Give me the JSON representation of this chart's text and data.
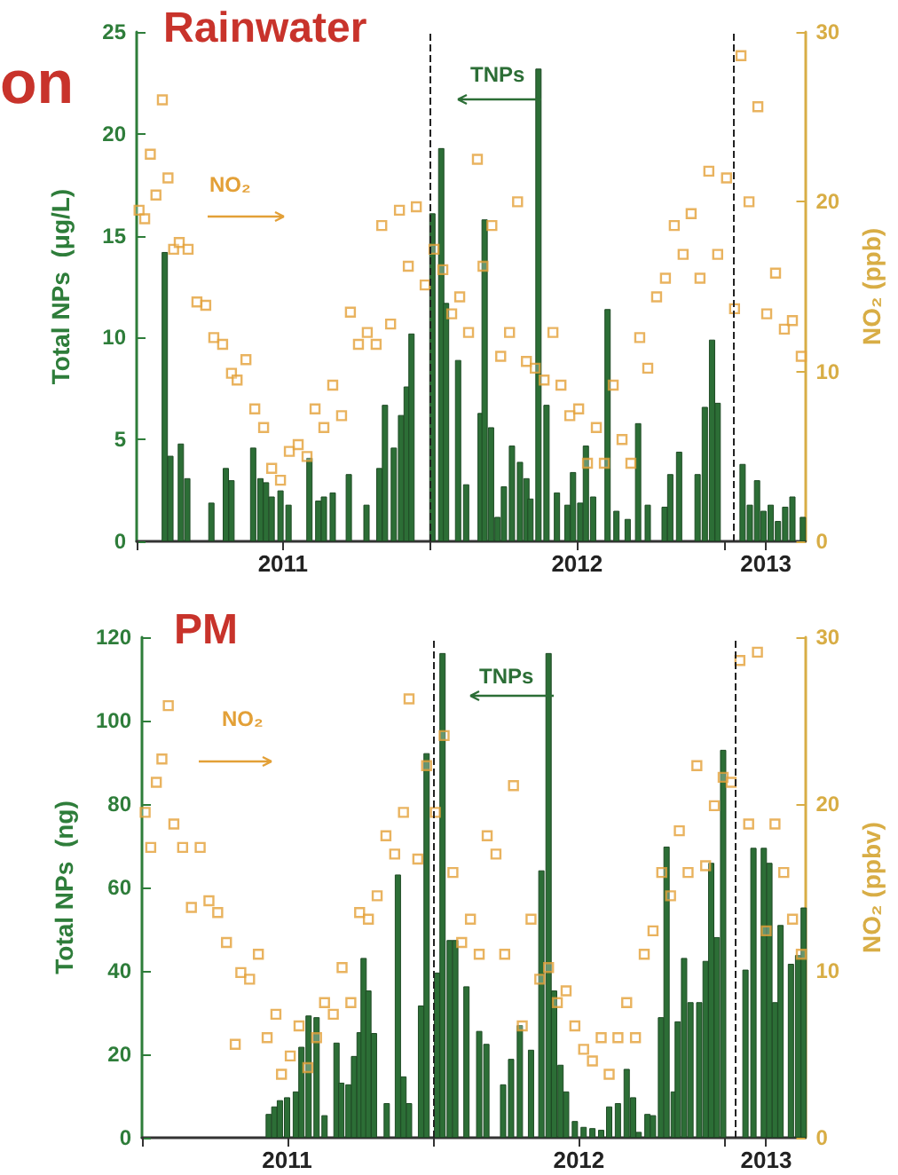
{
  "chart_data": [
    {
      "type": "bar",
      "title": "Rainwater",
      "ylabel": "Total NPs  (μg/L)",
      "y2label": "NO₂ (ppb)",
      "annotations": [
        "on"
      ],
      "xlim": [
        "2011-01-01",
        "2013-04-12"
      ],
      "xticks": [
        {
          "value": "2011-01-01",
          "label": null
        },
        {
          "value": "2011-07-02",
          "label": "2011"
        },
        {
          "value": "2012-01-01",
          "label": null
        },
        {
          "value": "2012-07-02",
          "label": "2012"
        },
        {
          "value": "2013-01-01",
          "label": null
        },
        {
          "value": "2013-02-22",
          "label": "2013"
        }
      ],
      "ylim": [
        0,
        25
      ],
      "yticks": [
        0,
        5,
        10,
        15,
        20,
        25
      ],
      "y2lim": [
        0,
        30
      ],
      "y2ticks": [
        0,
        10,
        20,
        30
      ],
      "grid": false,
      "legend": false,
      "marker": "square",
      "ref_lines": [
        {
          "axis": "x",
          "value": "2012-01-01",
          "label": null,
          "color": "#222222",
          "line_style": "dashed"
        },
        {
          "axis": "x",
          "value": "2013-01-13",
          "label": null,
          "color": "#222222",
          "line_style": "dashed"
        }
      ],
      "series": [
        {
          "name": "TNPs",
          "color": "#2c6e36",
          "x": [
            "2011-02-05",
            "2011-02-12",
            "2011-02-25",
            "2011-03-05",
            "2011-04-04",
            "2011-04-22",
            "2011-04-29",
            "2011-05-26",
            "2011-06-04",
            "2011-06-11",
            "2011-06-18",
            "2011-06-29",
            "2011-07-09",
            "2011-08-04",
            "2011-08-15",
            "2011-08-22",
            "2011-09-02",
            "2011-09-22",
            "2011-10-14",
            "2011-10-30",
            "2011-11-06",
            "2011-11-17",
            "2011-11-26",
            "2011-12-03",
            "2011-12-09",
            "2012-01-04",
            "2012-01-15",
            "2012-01-21",
            "2012-02-05",
            "2012-02-15",
            "2012-03-04",
            "2012-03-09",
            "2012-03-17",
            "2012-03-25",
            "2012-04-02",
            "2012-04-12",
            "2012-04-22",
            "2012-04-30",
            "2012-05-05",
            "2012-05-15",
            "2012-05-25",
            "2012-06-07",
            "2012-06-20",
            "2012-06-27",
            "2012-07-06",
            "2012-07-13",
            "2012-07-22",
            "2012-08-09",
            "2012-08-20",
            "2012-09-03",
            "2012-09-16",
            "2012-09-28",
            "2012-10-19",
            "2012-10-26",
            "2012-11-06",
            "2012-11-29",
            "2012-12-08",
            "2012-12-17",
            "2012-12-24",
            "2013-01-24",
            "2013-02-02",
            "2013-02-11",
            "2013-02-19",
            "2013-02-28",
            "2013-03-09",
            "2013-03-18",
            "2013-03-27",
            "2013-04-09"
          ],
          "values": [
            14.2,
            4.2,
            4.8,
            3.1,
            1.9,
            3.6,
            3.0,
            4.6,
            3.1,
            2.9,
            2.2,
            2.5,
            1.8,
            4.1,
            2.0,
            2.2,
            2.4,
            3.3,
            1.8,
            3.6,
            6.7,
            4.6,
            6.2,
            7.6,
            10.2,
            16.1,
            19.3,
            11.7,
            8.9,
            2.8,
            6.3,
            15.8,
            5.6,
            1.2,
            2.7,
            4.7,
            3.9,
            3.1,
            2.1,
            23.2,
            6.7,
            2.4,
            1.8,
            3.4,
            1.9,
            4.7,
            2.2,
            11.4,
            1.5,
            1.1,
            5.8,
            1.8,
            1.7,
            3.3,
            4.4,
            3.3,
            6.6,
            9.9,
            6.8,
            3.8,
            1.8,
            3.0,
            1.5,
            1.8,
            1.0,
            1.7,
            2.2,
            1.2
          ]
        },
        {
          "name": "NO₂",
          "type": "scatter",
          "axis": "y2",
          "color": "#e3a037",
          "x": [
            "2011-01-04",
            "2011-01-11",
            "2011-01-18",
            "2011-01-25",
            "2011-02-02",
            "2011-02-09",
            "2011-02-16",
            "2011-02-23",
            "2011-03-06",
            "2011-03-17",
            "2011-03-28",
            "2011-04-07",
            "2011-04-18",
            "2011-04-29",
            "2011-05-06",
            "2011-05-17",
            "2011-05-28",
            "2011-06-08",
            "2011-06-18",
            "2011-06-29",
            "2011-07-10",
            "2011-07-21",
            "2011-08-01",
            "2011-08-11",
            "2011-08-22",
            "2011-09-02",
            "2011-09-13",
            "2011-09-24",
            "2011-10-04",
            "2011-10-15",
            "2011-10-26",
            "2011-11-02",
            "2011-11-13",
            "2011-11-24",
            "2011-12-05",
            "2011-12-15",
            "2011-12-26",
            "2012-01-06",
            "2012-01-17",
            "2012-01-28",
            "2012-02-07",
            "2012-02-18",
            "2012-02-29",
            "2012-03-07",
            "2012-03-18",
            "2012-03-29",
            "2012-04-09",
            "2012-04-19",
            "2012-04-30",
            "2012-05-11",
            "2012-05-22",
            "2012-06-02",
            "2012-06-12",
            "2012-06-23",
            "2012-07-04",
            "2012-07-15",
            "2012-07-26",
            "2012-08-05",
            "2012-08-16",
            "2012-08-27",
            "2012-09-07",
            "2012-09-18",
            "2012-09-28",
            "2012-10-09",
            "2012-10-20",
            "2012-10-31",
            "2012-11-11",
            "2012-11-21",
            "2012-12-02",
            "2012-12-13",
            "2012-12-24",
            "2013-01-04",
            "2013-01-14",
            "2013-01-22",
            "2013-02-01",
            "2013-02-12",
            "2013-02-23",
            "2013-03-06",
            "2013-03-17",
            "2013-03-27",
            "2013-04-07"
          ],
          "values": [
            19.5,
            19.0,
            22.8,
            20.4,
            26.0,
            21.4,
            17.2,
            17.6,
            17.2,
            14.1,
            13.9,
            12.0,
            11.6,
            9.9,
            9.5,
            10.7,
            7.8,
            6.7,
            4.3,
            3.6,
            5.3,
            5.7,
            5.0,
            7.8,
            6.7,
            9.2,
            7.4,
            13.5,
            11.6,
            12.3,
            11.6,
            18.6,
            12.8,
            19.5,
            16.2,
            19.7,
            15.1,
            17.2,
            16.0,
            13.4,
            14.4,
            12.3,
            22.5,
            16.2,
            18.6,
            10.9,
            12.3,
            20.0,
            10.6,
            10.2,
            9.5,
            12.3,
            9.2,
            7.4,
            7.8,
            4.6,
            6.7,
            4.6,
            9.2,
            6.0,
            4.6,
            12.0,
            10.2,
            14.4,
            15.5,
            18.6,
            16.9,
            19.3,
            15.5,
            21.8,
            16.9,
            21.4,
            13.7,
            28.6,
            20.0,
            25.6,
            13.4,
            15.8,
            12.5,
            13.0,
            10.9
          ]
        }
      ]
    },
    {
      "type": "bar",
      "title": "PM",
      "ylabel": "Total NPs  (ng)",
      "y2label": "NO₂ (ppbv)",
      "xlim": [
        "2011-01-01",
        "2013-04-12"
      ],
      "xticks": [
        {
          "value": "2011-01-01",
          "label": null
        },
        {
          "value": "2011-07-02",
          "label": "2011"
        },
        {
          "value": "2012-01-01",
          "label": null
        },
        {
          "value": "2012-07-02",
          "label": "2012"
        },
        {
          "value": "2013-01-01",
          "label": null
        },
        {
          "value": "2013-02-22",
          "label": "2013"
        }
      ],
      "ylim": [
        0,
        120
      ],
      "yticks": [
        0,
        20,
        40,
        60,
        80,
        100,
        120
      ],
      "y2lim": [
        0,
        30
      ],
      "y2ticks": [
        0,
        10,
        20,
        30
      ],
      "grid": false,
      "legend": false,
      "marker": "square",
      "ref_lines": [
        {
          "axis": "x",
          "value": "2012-01-02",
          "label": null,
          "color": "#222222",
          "line_style": "dashed"
        },
        {
          "axis": "x",
          "value": "2013-01-15",
          "label": null,
          "color": "#222222",
          "line_style": "dashed"
        }
      ],
      "series": [
        {
          "name": "TNPs",
          "color": "#2c6e36",
          "x": [
            "2011-06-09",
            "2011-06-16",
            "2011-06-23",
            "2011-07-02",
            "2011-07-13",
            "2011-07-20",
            "2011-07-29",
            "2011-08-08",
            "2011-08-18",
            "2011-09-02",
            "2011-09-08",
            "2011-09-17",
            "2011-09-24",
            "2011-10-01",
            "2011-10-06",
            "2011-10-12",
            "2011-10-19",
            "2011-11-04",
            "2011-11-18",
            "2011-11-25",
            "2011-12-02",
            "2011-12-17",
            "2011-12-24",
            "2012-01-06",
            "2012-01-13",
            "2012-01-22",
            "2012-01-29",
            "2012-02-12",
            "2012-02-28",
            "2012-03-08",
            "2012-03-29",
            "2012-04-08",
            "2012-04-19",
            "2012-05-03",
            "2012-05-16",
            "2012-05-25",
            "2012-06-01",
            "2012-06-09",
            "2012-06-16",
            "2012-06-27",
            "2012-07-08",
            "2012-07-19",
            "2012-07-30",
            "2012-08-09",
            "2012-08-20",
            "2012-08-31",
            "2012-09-08",
            "2012-09-15",
            "2012-09-26",
            "2012-10-03",
            "2012-10-13",
            "2012-10-20",
            "2012-10-29",
            "2012-11-03",
            "2012-11-11",
            "2012-11-19",
            "2012-11-30",
            "2012-12-08",
            "2012-12-15",
            "2012-12-22",
            "2012-12-30",
            "2013-01-27",
            "2013-02-06",
            "2013-02-19",
            "2013-02-26",
            "2013-03-05",
            "2013-03-12",
            "2013-03-25",
            "2013-04-03",
            "2013-04-10"
          ],
          "values": [
            5.7,
            7.5,
            9.0,
            9.7,
            11.1,
            21.8,
            29.3,
            28.9,
            5.4,
            22.8,
            13.2,
            12.8,
            19.6,
            25.3,
            43.1,
            35.3,
            25.1,
            8.3,
            63.1,
            14.7,
            8.3,
            31.7,
            92.2,
            39.6,
            116.2,
            47.4,
            47.4,
            36.3,
            25.6,
            22.5,
            12.8,
            18.9,
            27.0,
            21.1,
            64.1,
            116.2,
            35.3,
            17.5,
            11.1,
            4.0,
            2.6,
            2.3,
            1.9,
            7.5,
            8.3,
            16.5,
            9.7,
            1.4,
            5.7,
            5.4,
            28.9,
            69.8,
            11.1,
            27.9,
            43.1,
            32.5,
            32.5,
            42.4,
            65.9,
            48.1,
            93.0,
            40.3,
            69.5,
            69.5,
            65.9,
            32.5,
            51.0,
            41.7,
            43.8,
            55.2
          ]
        },
        {
          "name": "NO₂",
          "type": "scatter",
          "axis": "y2",
          "color": "#e3a037",
          "x": [
            "2011-01-05",
            "2011-01-12",
            "2011-01-19",
            "2011-01-26",
            "2011-02-03",
            "2011-02-10",
            "2011-02-21",
            "2011-03-04",
            "2011-03-15",
            "2011-03-26",
            "2011-04-06",
            "2011-04-17",
            "2011-04-28",
            "2011-05-05",
            "2011-05-16",
            "2011-05-27",
            "2011-06-07",
            "2011-06-18",
            "2011-06-25",
            "2011-07-06",
            "2011-07-17",
            "2011-07-28",
            "2011-08-08",
            "2011-08-18",
            "2011-08-29",
            "2011-09-09",
            "2011-09-20",
            "2011-10-01",
            "2011-10-12",
            "2011-10-23",
            "2011-11-03",
            "2011-11-14",
            "2011-11-25",
            "2011-12-02",
            "2011-12-13",
            "2011-12-24",
            "2012-01-04",
            "2012-01-15",
            "2012-01-26",
            "2012-02-06",
            "2012-02-17",
            "2012-02-28",
            "2012-03-09",
            "2012-03-20",
            "2012-03-31",
            "2012-04-11",
            "2012-04-22",
            "2012-05-03",
            "2012-05-14",
            "2012-05-25",
            "2012-06-05",
            "2012-06-16",
            "2012-06-27",
            "2012-07-08",
            "2012-07-19",
            "2012-07-30",
            "2012-08-09",
            "2012-08-20",
            "2012-08-31",
            "2012-09-11",
            "2012-09-22",
            "2012-10-03",
            "2012-10-14",
            "2012-10-25",
            "2012-11-05",
            "2012-11-16",
            "2012-11-27",
            "2012-12-08",
            "2012-12-19",
            "2012-12-30",
            "2013-01-09",
            "2013-01-20",
            "2013-01-31",
            "2013-02-11",
            "2013-02-22",
            "2013-03-05",
            "2013-03-16",
            "2013-03-27",
            "2013-04-07"
          ],
          "values": [
            19.5,
            17.4,
            21.3,
            22.7,
            25.9,
            18.8,
            17.4,
            13.8,
            17.4,
            14.2,
            13.5,
            11.7,
            5.6,
            9.9,
            9.5,
            11.0,
            6.0,
            7.4,
            3.8,
            4.9,
            6.7,
            4.2,
            6.0,
            8.1,
            7.4,
            10.2,
            8.1,
            13.5,
            13.1,
            14.5,
            18.1,
            17.0,
            19.5,
            26.3,
            16.7,
            22.3,
            19.5,
            24.1,
            15.9,
            11.7,
            13.1,
            11.0,
            18.1,
            17.0,
            11.0,
            21.1,
            6.7,
            13.1,
            9.5,
            10.2,
            8.1,
            8.8,
            6.7,
            5.3,
            4.6,
            6.0,
            3.8,
            6.0,
            8.1,
            6.0,
            11.0,
            12.4,
            15.9,
            14.5,
            18.4,
            15.9,
            22.3,
            16.3,
            19.9,
            21.6,
            21.3,
            28.6,
            18.8,
            29.1,
            12.4,
            18.8,
            15.9,
            13.1,
            11.0
          ]
        }
      ]
    }
  ]
}
